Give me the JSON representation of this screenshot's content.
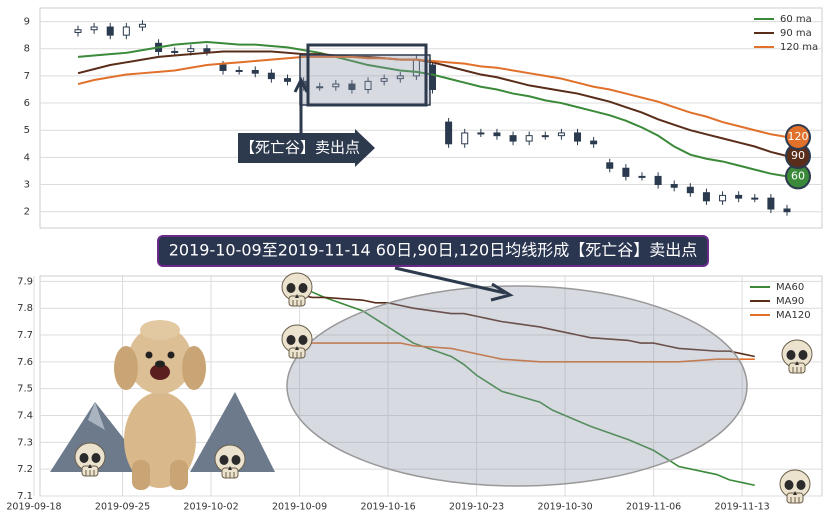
{
  "chart_data": [
    {
      "type": "candlestick",
      "ylim": [
        1.4,
        9.5
      ],
      "yticks": [
        2,
        3,
        4,
        5,
        6,
        7,
        8,
        9
      ],
      "grid": true,
      "legend": "upper right",
      "annotation": "【死亡谷】卖出点",
      "ohlc": {
        "color": "#2b3a4e",
        "open": [
          8.6,
          8.7,
          8.8,
          8.5,
          8.8,
          8.2,
          7.9,
          7.9,
          8.0,
          7.4,
          7.2,
          7.2,
          7.1,
          6.9,
          6.8,
          6.6,
          6.6,
          6.7,
          6.5,
          6.8,
          6.9,
          7.0,
          7.4,
          5.3,
          4.5,
          4.9,
          4.9,
          4.8,
          4.6,
          4.8,
          4.8,
          4.9,
          4.6,
          3.8,
          3.6,
          3.3,
          3.3,
          3.0,
          2.9,
          2.7,
          2.4,
          2.6,
          2.5,
          2.5,
          2.1
        ],
        "high": [
          8.85,
          8.95,
          8.95,
          8.95,
          9.05,
          8.35,
          8.05,
          8.15,
          8.15,
          7.55,
          7.35,
          7.35,
          7.25,
          7.05,
          6.95,
          6.75,
          6.85,
          6.85,
          6.95,
          7.05,
          7.15,
          7.75,
          7.55,
          5.45,
          5.05,
          5.05,
          5.05,
          4.95,
          4.95,
          4.95,
          5.05,
          5.05,
          4.75,
          3.95,
          3.75,
          3.45,
          3.45,
          3.15,
          3.05,
          2.85,
          2.75,
          2.75,
          2.65,
          2.65,
          2.25
        ],
        "low": [
          8.45,
          8.55,
          8.35,
          8.35,
          8.65,
          7.75,
          7.75,
          7.75,
          7.75,
          7.05,
          7.05,
          6.95,
          6.75,
          6.65,
          6.45,
          6.45,
          6.45,
          6.35,
          6.35,
          6.65,
          6.75,
          6.85,
          6.35,
          4.35,
          4.35,
          4.75,
          4.65,
          4.45,
          4.45,
          4.65,
          4.65,
          4.45,
          4.35,
          3.45,
          3.15,
          3.15,
          2.85,
          2.75,
          2.55,
          2.25,
          2.25,
          2.35,
          2.35,
          1.95,
          1.85
        ],
        "close": [
          8.7,
          8.8,
          8.5,
          8.8,
          8.9,
          7.9,
          7.9,
          8.0,
          7.9,
          7.2,
          7.2,
          7.1,
          6.9,
          6.8,
          6.6,
          6.6,
          6.7,
          6.5,
          6.8,
          6.9,
          7.0,
          7.6,
          6.5,
          4.5,
          4.9,
          4.9,
          4.8,
          4.6,
          4.8,
          4.8,
          4.9,
          4.6,
          4.5,
          3.6,
          3.3,
          3.3,
          3.0,
          2.9,
          2.7,
          2.4,
          2.6,
          2.5,
          2.5,
          2.1,
          2.0
        ]
      },
      "series": [
        {
          "name": "60 ma",
          "color": "#3a8a3a",
          "end_label": "60",
          "values": [
            7.7,
            7.75,
            7.8,
            7.85,
            7.95,
            8.05,
            8.15,
            8.2,
            8.25,
            8.2,
            8.15,
            8.15,
            8.1,
            8.05,
            7.95,
            7.85,
            7.7,
            7.55,
            7.4,
            7.3,
            7.2,
            7.15,
            7.05,
            6.9,
            6.75,
            6.6,
            6.5,
            6.35,
            6.25,
            6.1,
            6.0,
            5.85,
            5.7,
            5.55,
            5.35,
            5.1,
            4.8,
            4.4,
            4.1,
            3.95,
            3.85,
            3.7,
            3.55,
            3.4,
            3.3
          ]
        },
        {
          "name": "90 ma",
          "color": "#5a2d1a",
          "end_label": "90",
          "values": [
            7.1,
            7.25,
            7.4,
            7.5,
            7.6,
            7.7,
            7.75,
            7.8,
            7.85,
            7.9,
            7.9,
            7.9,
            7.9,
            7.85,
            7.8,
            7.8,
            7.75,
            7.7,
            7.7,
            7.65,
            7.6,
            7.6,
            7.5,
            7.35,
            7.2,
            7.05,
            6.95,
            6.8,
            6.65,
            6.55,
            6.45,
            6.35,
            6.2,
            6.05,
            5.85,
            5.65,
            5.4,
            5.2,
            5.0,
            4.85,
            4.7,
            4.55,
            4.4,
            4.2,
            4.05
          ]
        },
        {
          "name": "120 ma",
          "color": "#e0702a",
          "end_label": "120",
          "values": [
            6.7,
            6.85,
            6.95,
            7.05,
            7.1,
            7.15,
            7.2,
            7.3,
            7.4,
            7.45,
            7.5,
            7.55,
            7.6,
            7.65,
            7.7,
            7.7,
            7.7,
            7.7,
            7.65,
            7.65,
            7.6,
            7.6,
            7.55,
            7.5,
            7.45,
            7.35,
            7.3,
            7.2,
            7.1,
            7.0,
            6.9,
            6.75,
            6.6,
            6.5,
            6.35,
            6.2,
            6.05,
            5.85,
            5.65,
            5.5,
            5.3,
            5.15,
            5.0,
            4.85,
            4.75
          ]
        }
      ]
    },
    {
      "type": "line",
      "title": "2019-10-09至2019-11-14 60日,90日,120日均线形成【死亡谷】卖出点",
      "x": [
        "2019-10-09",
        "2019-10-10",
        "2019-10-11",
        "2019-10-14",
        "2019-10-15",
        "2019-10-16",
        "2019-10-17",
        "2019-10-18",
        "2019-10-21",
        "2019-10-22",
        "2019-10-23",
        "2019-10-24",
        "2019-10-25",
        "2019-10-28",
        "2019-10-29",
        "2019-10-30",
        "2019-10-31",
        "2019-11-01",
        "2019-11-04",
        "2019-11-05",
        "2019-11-06",
        "2019-11-07",
        "2019-11-08",
        "2019-11-11",
        "2019-11-12",
        "2019-11-13",
        "2019-11-14"
      ],
      "xlim": [
        "2019-09-18",
        "2019-11-19"
      ],
      "xticks": [
        "2019-09-18",
        "2019-09-25",
        "2019-10-02",
        "2019-10-09",
        "2019-10-16",
        "2019-10-23",
        "2019-10-30",
        "2019-11-06",
        "2019-11-13"
      ],
      "ylim": [
        7.1,
        7.92
      ],
      "yticks": [
        7.1,
        7.2,
        7.3,
        7.4,
        7.5,
        7.6,
        7.7,
        7.8,
        7.9
      ],
      "grid": true,
      "legend": "upper right",
      "series": [
        {
          "name": "MA60",
          "color": "#3a8a3a",
          "values": [
            7.89,
            7.86,
            7.84,
            7.79,
            7.76,
            7.73,
            7.7,
            7.67,
            7.62,
            7.59,
            7.55,
            7.52,
            7.49,
            7.45,
            7.42,
            7.4,
            7.38,
            7.36,
            7.31,
            7.29,
            7.27,
            7.24,
            7.21,
            7.18,
            7.16,
            7.15,
            7.14
          ]
        },
        {
          "name": "MA90",
          "color": "#5a2d1a",
          "values": [
            7.85,
            7.84,
            7.84,
            7.83,
            7.82,
            7.82,
            7.81,
            7.8,
            7.78,
            7.78,
            7.77,
            7.76,
            7.75,
            7.73,
            7.72,
            7.71,
            7.7,
            7.69,
            7.68,
            7.67,
            7.67,
            7.66,
            7.65,
            7.64,
            7.64,
            7.63,
            7.62
          ]
        },
        {
          "name": "MA120",
          "color": "#e0702a",
          "values": [
            7.67,
            7.67,
            7.67,
            7.67,
            7.67,
            7.67,
            7.67,
            7.66,
            7.65,
            7.64,
            7.63,
            7.62,
            7.61,
            7.6,
            7.6,
            7.6,
            7.6,
            7.6,
            7.6,
            7.6,
            7.6,
            7.6,
            7.6,
            7.61,
            7.61,
            7.61,
            7.61
          ]
        }
      ]
    }
  ]
}
